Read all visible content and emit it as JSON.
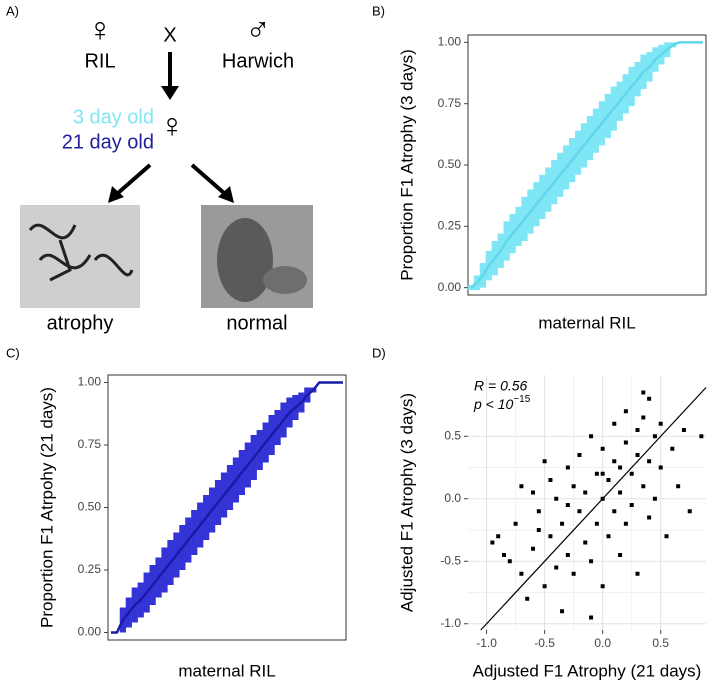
{
  "diagram": {
    "label": "A)",
    "female_symbol": "♀",
    "male_symbol": "♂",
    "left_parent": "RIL",
    "cross": "X",
    "right_parent": "Harwich",
    "age_young": "3 day old",
    "age_old": "21 day old",
    "outcomes": [
      "atrophy",
      "normal"
    ]
  },
  "chart_data": [
    {
      "type": "errorbar",
      "label": "B)",
      "x_label": "maternal RIL",
      "y_label": "Proportion F1  Atrophy (3 days)",
      "color": "#7fe6f5",
      "line_color": "#62d6ea",
      "frame": true,
      "grid": false,
      "categories": [
        null,
        null,
        null,
        null,
        null,
        null,
        null,
        null,
        null,
        null,
        null,
        null,
        null,
        null,
        null,
        null,
        null,
        null,
        null,
        null,
        null,
        null,
        null,
        null,
        null,
        null,
        null,
        null,
        null,
        null,
        null,
        null,
        null,
        null,
        null,
        null,
        null,
        null,
        null,
        null
      ],
      "values": [
        0,
        0.02,
        0.05,
        0.09,
        0.12,
        0.15,
        0.19,
        0.22,
        0.25,
        0.28,
        0.31,
        0.34,
        0.37,
        0.4,
        0.43,
        0.46,
        0.49,
        0.52,
        0.55,
        0.58,
        0.61,
        0.64,
        0.67,
        0.7,
        0.73,
        0.76,
        0.79,
        0.82,
        0.85,
        0.88,
        0.9,
        0.93,
        0.95,
        0.97,
        0.99,
        1,
        1,
        1,
        1,
        1
      ],
      "errors": [
        0.01,
        0.03,
        0.05,
        0.06,
        0.07,
        0.07,
        0.08,
        0.08,
        0.08,
        0.09,
        0.09,
        0.09,
        0.09,
        0.09,
        0.09,
        0.09,
        0.09,
        0.09,
        0.09,
        0.09,
        0.09,
        0.09,
        0.09,
        0.09,
        0.09,
        0.08,
        0.08,
        0.08,
        0.07,
        0.07,
        0.06,
        0.05,
        0.04,
        0.03,
        0.01,
        0,
        0,
        0,
        0,
        0
      ],
      "ylim": [
        -0.03,
        1.03
      ],
      "yticks": [
        {
          "value": 0,
          "label": "0.00"
        },
        0.25,
        {
          "value": 0.5,
          "label": "0.50"
        },
        0.75,
        {
          "value": 1,
          "label": "1.00"
        }
      ]
    },
    {
      "type": "errorbar",
      "label": "C)",
      "x_label": "maternal RIL",
      "y_label": "Proportion F1 Atrpohy (21 days)",
      "color": "#3434d6",
      "line_color": "#1a1aa8",
      "frame": true,
      "grid": false,
      "categories": [
        null,
        null,
        null,
        null,
        null,
        null,
        null,
        null,
        null,
        null,
        null,
        null,
        null,
        null,
        null,
        null,
        null,
        null,
        null,
        null,
        null,
        null,
        null,
        null,
        null,
        null,
        null,
        null,
        null,
        null,
        null,
        null,
        null,
        null,
        null,
        null,
        null,
        null,
        null,
        null
      ],
      "values": [
        0,
        0,
        0.05,
        0.08,
        0.11,
        0.13,
        0.16,
        0.19,
        0.22,
        0.25,
        0.28,
        0.31,
        0.34,
        0.37,
        0.4,
        0.43,
        0.46,
        0.49,
        0.52,
        0.55,
        0.58,
        0.61,
        0.64,
        0.67,
        0.7,
        0.73,
        0.76,
        0.79,
        0.82,
        0.85,
        0.88,
        0.9,
        0.92,
        0.95,
        0.97,
        1,
        1,
        1,
        1,
        1
      ],
      "errors": [
        0,
        0,
        0.05,
        0.06,
        0.07,
        0.07,
        0.08,
        0.08,
        0.08,
        0.09,
        0.09,
        0.09,
        0.09,
        0.09,
        0.09,
        0.09,
        0.09,
        0.09,
        0.09,
        0.09,
        0.09,
        0.09,
        0.09,
        0.09,
        0.09,
        0.08,
        0.08,
        0.08,
        0.07,
        0.07,
        0.06,
        0.05,
        0.04,
        0.03,
        0.01,
        0,
        0,
        0,
        0,
        0
      ],
      "ylim": [
        -0.03,
        1.03
      ],
      "yticks": [
        {
          "value": 0,
          "label": "0.00"
        },
        0.25,
        {
          "value": 0.5,
          "label": "0.50"
        },
        0.75,
        {
          "value": 1,
          "label": "1.00"
        }
      ]
    },
    {
      "type": "scatter",
      "label": "D)",
      "x_label": "Adjusted F1 Atrophy (21 days)",
      "y_label": "Adjusted F1  Atrophy (3 days)",
      "color": "#000000",
      "frame": false,
      "grid": true,
      "annotation_r": "R = 0.56",
      "annotation_p": "p < 10",
      "annotation_p_exponent": "−15",
      "x": [
        -0.9,
        -0.85,
        -0.8,
        -0.75,
        -0.7,
        -0.7,
        -0.65,
        -0.6,
        -0.6,
        -0.55,
        -0.5,
        -0.5,
        -0.45,
        -0.45,
        -0.4,
        -0.4,
        -0.35,
        -0.35,
        -0.3,
        -0.3,
        -0.25,
        -0.25,
        -0.2,
        -0.2,
        -0.15,
        -0.15,
        -0.1,
        -0.1,
        -0.05,
        -0.05,
        0,
        0,
        0,
        0.05,
        0.05,
        0.1,
        0.1,
        0.1,
        0.15,
        0.15,
        0.2,
        0.2,
        0.2,
        0.25,
        0.25,
        0.3,
        0.3,
        0.3,
        0.35,
        0.35,
        0.4,
        0.4,
        0.4,
        0.45,
        0.45,
        0.5,
        0.5,
        0.55,
        0.6,
        0.65,
        0.7,
        0.75,
        0.85,
        -0.95,
        -0.1,
        0.35,
        -0.55,
        0,
        -0.3,
        0.15
      ],
      "values": [
        -0.3,
        -0.45,
        -0.5,
        -0.2,
        -0.6,
        0.1,
        -0.8,
        0.05,
        -0.4,
        -0.1,
        -0.7,
        0.3,
        -0.3,
        0.15,
        -0.55,
        0,
        -0.9,
        -0.2,
        0.25,
        -0.45,
        0.1,
        -0.6,
        -0.1,
        0.35,
        -0.35,
        0.05,
        0.5,
        -0.5,
        0.2,
        -0.2,
        0,
        0.4,
        -0.7,
        0.15,
        -0.3,
        0.6,
        -0.1,
        0.3,
        -0.45,
        0.05,
        0.45,
        -0.2,
        0.7,
        0.2,
        -0.05,
        0.55,
        0.35,
        -0.6,
        0.1,
        0.65,
        0.3,
        -0.15,
        0.8,
        0.5,
        0,
        0.25,
        0.6,
        -0.3,
        0.4,
        0.1,
        0.55,
        -0.1,
        0.5,
        -0.35,
        -0.95,
        0.85,
        -0.25,
        0.2,
        -0.05,
        0.25
      ],
      "xlim": [
        -1.16,
        0.89
      ],
      "xticks": [
        {
          "value": -1,
          "label": "-1.0"
        },
        -0.5,
        {
          "value": 0,
          "label": "0.0"
        },
        0.5
      ],
      "ylim": [
        -1.05,
        0.99
      ],
      "yticks": [
        {
          "value": -1,
          "label": "-1.0"
        },
        -0.5,
        {
          "value": 0,
          "label": "0.0"
        },
        0.5
      ]
    }
  ]
}
